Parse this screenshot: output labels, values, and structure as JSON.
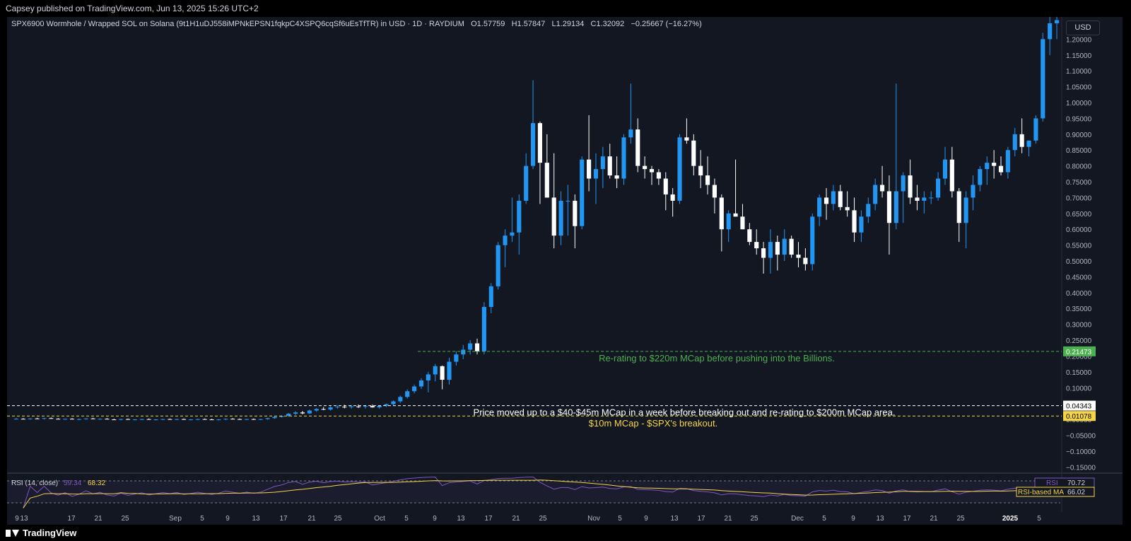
{
  "publish_line": "Capsey published on TradingView.com, Jun 13, 2025 15:26 UTC+2",
  "header": {
    "symbol_line": "SPX6900 Wormhole / Wrapped SOL on Solana (9t1H1uDJ558iMPNkEPSN1fqkpC4XSPQ6cqSf6uEsTfTR) in USD · 1D · RAYDIUM",
    "open_label": "O",
    "open_value": "1.57759",
    "high_label": "H",
    "high_value": "1.57847",
    "low_label": "L",
    "low_value": "1.29134",
    "close_label": "C",
    "close_value": "1.32092",
    "change_value": "−0.25667 (−16.27%)"
  },
  "currency_button": "USD",
  "footer": {
    "brand": "TradingView"
  },
  "colors": {
    "up": "#2196f3",
    "down": "#ffffff",
    "bg": "#131722",
    "green_note": "#4caf50",
    "yellow_note": "#f5d547",
    "rsi_line": "#7e57c2",
    "rsi_ma": "#f5d547"
  },
  "annotations": [
    {
      "text": "Re-rating to $220m MCap before pushing into the Billions.",
      "price": 0.21473,
      "color": "#4caf50",
      "line_style": "dashed"
    },
    {
      "text": "Price moved up to a $40-$45m MCap in a week before breaking out and re-rating to $200m MCap area.",
      "price": 0.04343,
      "color": "#ffffff",
      "line_style": "dashed"
    },
    {
      "text": "$10m MCap - $SPX's breakout.",
      "price": 0.01078,
      "color": "#f5d547",
      "line_style": "dashed"
    }
  ],
  "price_labels": [
    {
      "text": "0.21473",
      "price": 0.21473,
      "bg": "#4caf50",
      "fg": "#ffffff"
    },
    {
      "text": "0.04343",
      "price": 0.04343,
      "bg": "#ffffff",
      "fg": "#000000"
    },
    {
      "text": "0.01078",
      "price": 0.01078,
      "bg": "#f5d547",
      "fg": "#000000"
    }
  ],
  "rsi": {
    "label": "RSI (14, close)",
    "value": "59.34",
    "ma_value": "68.32",
    "right_label": "RSI",
    "right_value": "70.72",
    "ma_label": "RSI-based MA",
    "ma_right_value": "66.02"
  },
  "chart_data": {
    "type": "candlestick",
    "x_ticks": [
      "9",
      "13",
      "17",
      "21",
      "25",
      "Sep",
      "5",
      "9",
      "13",
      "17",
      "21",
      "25",
      "Oct",
      "5",
      "9",
      "13",
      "17",
      "21",
      "25",
      "Nov",
      "5",
      "9",
      "13",
      "17",
      "21",
      "25",
      "Dec",
      "5",
      "9",
      "13",
      "17",
      "21",
      "25",
      "2025",
      "5"
    ],
    "y_ticks": [
      "1.20000",
      "1.15000",
      "1.10000",
      "1.05000",
      "1.00000",
      "0.95000",
      "0.90000",
      "0.85000",
      "0.80000",
      "0.75000",
      "0.70000",
      "0.65000",
      "0.60000",
      "0.55000",
      "0.50000",
      "0.45000",
      "0.40000",
      "0.35000",
      "0.30000",
      "0.25000",
      "0.20000",
      "0.15000",
      "0.10000",
      "0.05000",
      "0.00000",
      "−0.05000",
      "−0.10000",
      "−0.15000"
    ],
    "ylim": [
      -0.165,
      1.27
    ],
    "candles": [
      [
        0.0,
        0.005,
        0.0,
        0.002
      ],
      [
        0.002,
        0.004,
        0.0,
        0.001
      ],
      [
        0.001,
        0.004,
        -0.001,
        0.003
      ],
      [
        0.003,
        0.005,
        0.001,
        0.002
      ],
      [
        0.002,
        0.005,
        0.0,
        0.004
      ],
      [
        0.004,
        0.006,
        0.002,
        0.002
      ],
      [
        0.002,
        0.004,
        0.0,
        0.001
      ],
      [
        0.001,
        0.003,
        -0.001,
        0.002
      ],
      [
        0.002,
        0.004,
        0.0,
        0.0
      ],
      [
        0.0,
        0.003,
        -0.002,
        0.001
      ],
      [
        0.001,
        0.004,
        -0.001,
        0.003
      ],
      [
        0.003,
        0.005,
        0.001,
        0.001
      ],
      [
        0.001,
        0.003,
        -0.001,
        0.002
      ],
      [
        0.002,
        0.004,
        0.0,
        0.0
      ],
      [
        0.0,
        0.002,
        -0.002,
        -0.001
      ],
      [
        -0.001,
        0.002,
        -0.003,
        0.001
      ],
      [
        0.001,
        0.003,
        -0.001,
        -0.001
      ],
      [
        -0.001,
        0.001,
        -0.003,
        0.0
      ],
      [
        0.0,
        0.002,
        -0.002,
        0.001
      ],
      [
        0.001,
        0.003,
        -0.001,
        -0.001
      ],
      [
        -0.001,
        0.001,
        -0.003,
        0.0
      ],
      [
        0.0,
        0.002,
        -0.002,
        0.001
      ],
      [
        0.001,
        0.003,
        -0.001,
        0.0
      ],
      [
        0.0,
        0.002,
        -0.002,
        0.001
      ],
      [
        0.001,
        0.003,
        -0.001,
        -0.001
      ],
      [
        -0.001,
        0.001,
        -0.003,
        0.0
      ],
      [
        0.0,
        0.002,
        -0.002,
        0.001
      ],
      [
        0.001,
        0.003,
        -0.001,
        0.0
      ],
      [
        0.0,
        0.002,
        -0.002,
        -0.001
      ],
      [
        -0.001,
        0.001,
        -0.003,
        0.0
      ],
      [
        0.0,
        0.003,
        -0.002,
        0.002
      ],
      [
        0.002,
        0.004,
        0.0,
        0.001
      ],
      [
        0.001,
        0.003,
        -0.001,
        0.0
      ],
      [
        0.0,
        0.002,
        -0.002,
        0.001
      ],
      [
        0.001,
        0.003,
        -0.001,
        0.0
      ],
      [
        0.0,
        0.002,
        -0.002,
        0.001
      ],
      [
        0.001,
        0.005,
        -0.001,
        0.004
      ],
      [
        0.004,
        0.009,
        0.002,
        0.008
      ],
      [
        0.008,
        0.013,
        0.006,
        0.011
      ],
      [
        0.011,
        0.02,
        0.008,
        0.018
      ],
      [
        0.018,
        0.026,
        0.014,
        0.022
      ],
      [
        0.022,
        0.027,
        0.016,
        0.019
      ],
      [
        0.019,
        0.031,
        0.017,
        0.028
      ],
      [
        0.028,
        0.036,
        0.024,
        0.033
      ],
      [
        0.033,
        0.039,
        0.029,
        0.031
      ],
      [
        0.031,
        0.041,
        0.028,
        0.038
      ],
      [
        0.038,
        0.044,
        0.034,
        0.04
      ],
      [
        0.04,
        0.046,
        0.035,
        0.039
      ],
      [
        0.039,
        0.045,
        0.034,
        0.041
      ],
      [
        0.041,
        0.047,
        0.036,
        0.04
      ],
      [
        0.04,
        0.045,
        0.034,
        0.042
      ],
      [
        0.042,
        0.047,
        0.037,
        0.038
      ],
      [
        0.038,
        0.044,
        0.034,
        0.043
      ],
      [
        0.043,
        0.05,
        0.039,
        0.048
      ],
      [
        0.048,
        0.06,
        0.044,
        0.057
      ],
      [
        0.057,
        0.075,
        0.052,
        0.071
      ],
      [
        0.071,
        0.095,
        0.066,
        0.089
      ],
      [
        0.089,
        0.11,
        0.082,
        0.104
      ],
      [
        0.104,
        0.13,
        0.096,
        0.123
      ],
      [
        0.123,
        0.15,
        0.085,
        0.142
      ],
      [
        0.142,
        0.175,
        0.12,
        0.168
      ],
      [
        0.168,
        0.17,
        0.095,
        0.125
      ],
      [
        0.125,
        0.195,
        0.11,
        0.182
      ],
      [
        0.182,
        0.215,
        0.17,
        0.205
      ],
      [
        0.205,
        0.235,
        0.19,
        0.22
      ],
      [
        0.22,
        0.25,
        0.205,
        0.24
      ],
      [
        0.24,
        0.255,
        0.205,
        0.215
      ],
      [
        0.215,
        0.37,
        0.205,
        0.355
      ],
      [
        0.355,
        0.43,
        0.335,
        0.42
      ],
      [
        0.42,
        0.56,
        0.41,
        0.55
      ],
      [
        0.55,
        0.6,
        0.48,
        0.58
      ],
      [
        0.58,
        0.7,
        0.56,
        0.59
      ],
      [
        0.59,
        0.71,
        0.52,
        0.69
      ],
      [
        0.69,
        0.84,
        0.68,
        0.8
      ],
      [
        0.8,
        1.07,
        0.79,
        0.935
      ],
      [
        0.935,
        0.94,
        0.68,
        0.81
      ],
      [
        0.81,
        0.9,
        0.7,
        0.7
      ],
      [
        0.7,
        0.84,
        0.54,
        0.58
      ],
      [
        0.58,
        0.72,
        0.55,
        0.69
      ],
      [
        0.69,
        0.74,
        0.58,
        0.69
      ],
      [
        0.69,
        0.71,
        0.54,
        0.61
      ],
      [
        0.61,
        0.83,
        0.6,
        0.82
      ],
      [
        0.82,
        0.96,
        0.72,
        0.76
      ],
      [
        0.76,
        0.84,
        0.68,
        0.79
      ],
      [
        0.79,
        0.86,
        0.73,
        0.83
      ],
      [
        0.83,
        0.87,
        0.76,
        0.77
      ],
      [
        0.77,
        0.83,
        0.73,
        0.76
      ],
      [
        0.76,
        0.9,
        0.74,
        0.89
      ],
      [
        0.89,
        1.06,
        0.87,
        0.915
      ],
      [
        0.915,
        0.95,
        0.78,
        0.8
      ],
      [
        0.8,
        0.83,
        0.76,
        0.79
      ],
      [
        0.79,
        0.8,
        0.74,
        0.78
      ],
      [
        0.78,
        0.79,
        0.74,
        0.76
      ],
      [
        0.76,
        0.78,
        0.66,
        0.71
      ],
      [
        0.71,
        0.73,
        0.64,
        0.69
      ],
      [
        0.69,
        0.9,
        0.68,
        0.89
      ],
      [
        0.89,
        0.95,
        0.87,
        0.88
      ],
      [
        0.88,
        0.9,
        0.77,
        0.8
      ],
      [
        0.8,
        0.85,
        0.73,
        0.77
      ],
      [
        0.77,
        0.83,
        0.71,
        0.74
      ],
      [
        0.74,
        0.76,
        0.65,
        0.7
      ],
      [
        0.7,
        0.71,
        0.53,
        0.6
      ],
      [
        0.6,
        0.66,
        0.56,
        0.65
      ],
      [
        0.65,
        0.82,
        0.64,
        0.64
      ],
      [
        0.64,
        0.68,
        0.6,
        0.6
      ],
      [
        0.6,
        0.62,
        0.55,
        0.56
      ],
      [
        0.56,
        0.6,
        0.52,
        0.54
      ],
      [
        0.54,
        0.56,
        0.46,
        0.51
      ],
      [
        0.51,
        0.6,
        0.46,
        0.56
      ],
      [
        0.56,
        0.58,
        0.47,
        0.52
      ],
      [
        0.52,
        0.6,
        0.5,
        0.57
      ],
      [
        0.57,
        0.58,
        0.51,
        0.52
      ],
      [
        0.52,
        0.56,
        0.48,
        0.51
      ],
      [
        0.51,
        0.54,
        0.47,
        0.49
      ],
      [
        0.49,
        0.65,
        0.47,
        0.64
      ],
      [
        0.64,
        0.71,
        0.61,
        0.7
      ],
      [
        0.7,
        0.73,
        0.63,
        0.68
      ],
      [
        0.68,
        0.74,
        0.66,
        0.72
      ],
      [
        0.72,
        0.74,
        0.66,
        0.67
      ],
      [
        0.67,
        0.72,
        0.64,
        0.66
      ],
      [
        0.66,
        0.7,
        0.56,
        0.59
      ],
      [
        0.59,
        0.66,
        0.56,
        0.64
      ],
      [
        0.64,
        0.7,
        0.62,
        0.68
      ],
      [
        0.68,
        0.76,
        0.66,
        0.74
      ],
      [
        0.74,
        0.8,
        0.7,
        0.72
      ],
      [
        0.72,
        0.77,
        0.52,
        0.62
      ],
      [
        0.62,
        1.06,
        0.6,
        0.72
      ],
      [
        0.72,
        0.78,
        0.62,
        0.77
      ],
      [
        0.77,
        0.82,
        0.68,
        0.7
      ],
      [
        0.7,
        0.74,
        0.66,
        0.69
      ],
      [
        0.69,
        0.72,
        0.65,
        0.7
      ],
      [
        0.7,
        0.72,
        0.68,
        0.7
      ],
      [
        0.7,
        0.78,
        0.69,
        0.76
      ],
      [
        0.76,
        0.86,
        0.74,
        0.82
      ],
      [
        0.82,
        0.86,
        0.7,
        0.72
      ],
      [
        0.72,
        0.73,
        0.56,
        0.62
      ],
      [
        0.62,
        0.72,
        0.54,
        0.7
      ],
      [
        0.7,
        0.77,
        0.66,
        0.74
      ],
      [
        0.74,
        0.8,
        0.72,
        0.79
      ],
      [
        0.79,
        0.83,
        0.74,
        0.81
      ],
      [
        0.81,
        0.85,
        0.76,
        0.8
      ],
      [
        0.8,
        0.83,
        0.77,
        0.78
      ],
      [
        0.78,
        0.86,
        0.76,
        0.85
      ],
      [
        0.85,
        0.92,
        0.83,
        0.9
      ],
      [
        0.9,
        0.95,
        0.84,
        0.86
      ],
      [
        0.86,
        0.88,
        0.83,
        0.88
      ],
      [
        0.88,
        0.96,
        0.87,
        0.95
      ],
      [
        0.95,
        1.22,
        0.94,
        1.2
      ],
      [
        1.2,
        1.27,
        1.15,
        1.25
      ],
      [
        1.25,
        1.27,
        1.2,
        1.26
      ]
    ]
  }
}
